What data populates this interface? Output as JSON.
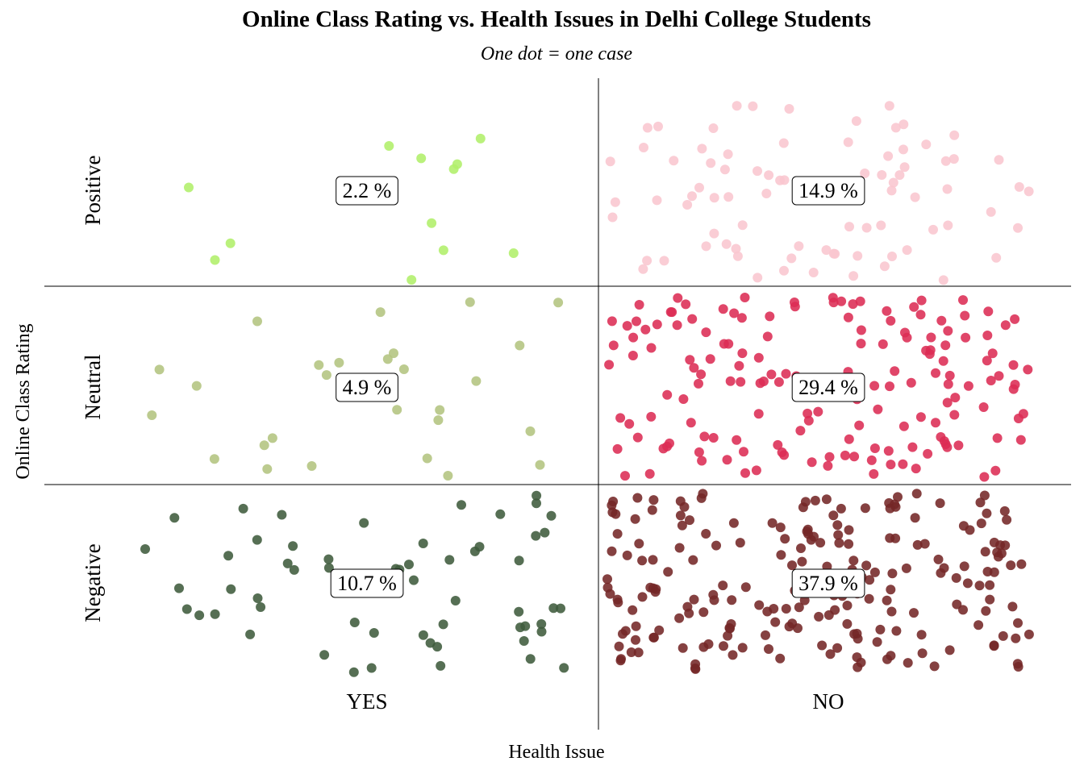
{
  "chart_data": {
    "type": "scatter",
    "title": "Online Class Rating vs. Health Issues in Delhi College Students",
    "subtitle": "One dot = one case",
    "xlabel": "Health Issue",
    "ylabel": "Online Class Rating",
    "x_categories": [
      "YES",
      "NO"
    ],
    "y_categories": [
      "Positive",
      "Neutral",
      "Negative"
    ],
    "grid": false,
    "cells": [
      {
        "health_issue": "YES",
        "rating": "Positive",
        "percent": 2.2,
        "label": "2.2 %",
        "count": 12,
        "color": "#b0ef6a"
      },
      {
        "health_issue": "NO",
        "rating": "Positive",
        "percent": 14.9,
        "label": "14.9 %",
        "count": 82,
        "color": "#f9c6cf"
      },
      {
        "health_issue": "YES",
        "rating": "Neutral",
        "percent": 4.9,
        "label": "4.9 %",
        "count": 27,
        "color": "#b3c480"
      },
      {
        "health_issue": "NO",
        "rating": "Neutral",
        "percent": 29.4,
        "label": "29.4 %",
        "count": 162,
        "color": "#dc2c54"
      },
      {
        "health_issue": "YES",
        "rating": "Negative",
        "percent": 10.7,
        "label": "10.7 %",
        "count": 59,
        "color": "#3f5b3c"
      },
      {
        "health_issue": "NO",
        "rating": "Negative",
        "percent": 37.9,
        "label": "37.9 %",
        "count": 209,
        "color": "#742727"
      }
    ]
  }
}
